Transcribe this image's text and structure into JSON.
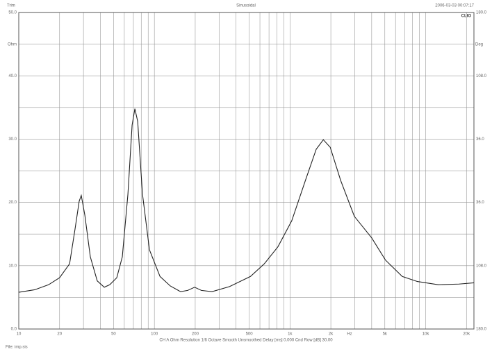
{
  "chart_data": {
    "type": "line",
    "title": "Sinusoidal",
    "top_left_text": "Trim",
    "top_right_text": "2006-03-03 00:07:17",
    "brand": "CLIO",
    "footer_text": "CH A   Ohm   Resolution 1/6 Octave   Smooth Unsmoothed   Delay [ms] 0.000   Cnd Row [dB] 30.00",
    "file_text": "File: imp.sis",
    "y_label": "Ohm",
    "y2_label": "Deg",
    "x_label": "Hz",
    "log_x": true,
    "grid": true,
    "xlim": [
      10,
      22700
    ],
    "xticks": [
      10,
      20,
      50,
      100,
      200,
      500,
      {
        "value": 1000,
        "label": "1k"
      },
      {
        "value": 2000,
        "label": "2k"
      },
      {
        "value": 5000,
        "label": "5k"
      },
      {
        "value": 10000,
        "label": "10k"
      },
      {
        "value": 20000,
        "label": "20k"
      }
    ],
    "x_minor_ticks": [
      30,
      40,
      60,
      70,
      80,
      90,
      300,
      400,
      600,
      700,
      800,
      900,
      3000,
      4000,
      6000,
      7000,
      8000,
      9000
    ],
    "ylim": [
      0,
      50
    ],
    "yticks": [
      {
        "value": 0,
        "label": "0.0"
      },
      {
        "value": 10,
        "label": "10.0"
      },
      {
        "value": 20,
        "label": "20.0"
      },
      {
        "value": 30,
        "label": "30.0"
      },
      {
        "value": 40,
        "label": "40.0"
      },
      {
        "value": 50,
        "label": "50.0"
      }
    ],
    "y_minor_ticks": [
      5,
      15,
      25,
      35,
      45
    ],
    "y2lim": [
      -180,
      180
    ],
    "y2ticks": [
      {
        "value": 180,
        "label": "180.0"
      },
      {
        "value": 108,
        "label": "108.0"
      },
      {
        "value": 36,
        "label": "36.0"
      },
      {
        "value": -36,
        "label": "36.0"
      },
      {
        "value": -108,
        "label": "108.0"
      },
      {
        "value": -180,
        "label": "180.0"
      }
    ],
    "x": [
      10,
      13.1,
      16.6,
      20,
      23.7,
      26,
      27.9,
      28.9,
      30.7,
      33.7,
      37.9,
      42.7,
      46.9,
      52.8,
      58,
      63.8,
      68.5,
      71.8,
      75.3,
      81.7,
      92,
      110,
      131,
      156,
      176,
      198,
      222,
      266,
      358,
      511,
      646,
      815,
      1030,
      1300,
      1560,
      1760,
      1980,
      2360,
      2980,
      4000,
      5050,
      6720,
      8700,
      12400,
      17600,
      22700
    ],
    "series": [
      {
        "color": "#222222",
        "values": [
          5.8,
          6.2,
          7.0,
          8.1,
          10.3,
          15.8,
          20.2,
          21.1,
          18.0,
          11.4,
          7.6,
          6.6,
          7.0,
          8.1,
          11.4,
          21.3,
          32.2,
          34.8,
          32.8,
          21.3,
          12.5,
          8.3,
          6.8,
          5.9,
          6.1,
          6.6,
          6.1,
          5.9,
          6.7,
          8.3,
          10.3,
          13.0,
          17.1,
          23.5,
          28.4,
          29.9,
          28.7,
          23.5,
          17.8,
          14.4,
          10.9,
          8.3,
          7.5,
          7.0,
          7.1,
          7.3
        ]
      }
    ]
  }
}
